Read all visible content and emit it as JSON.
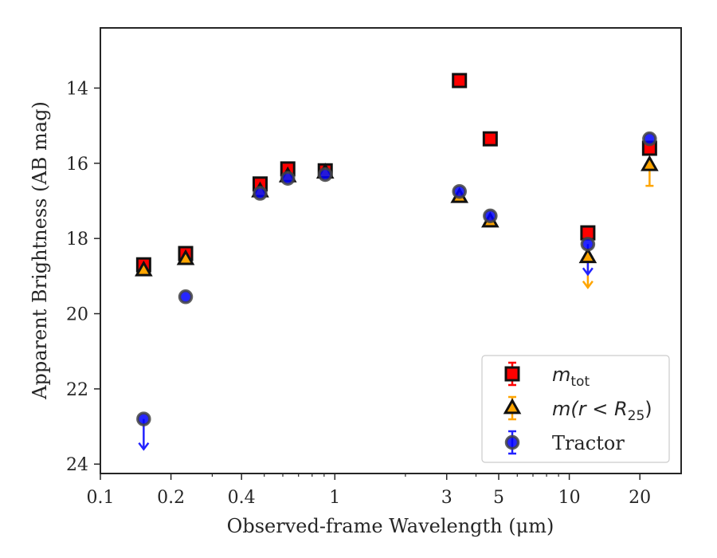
{
  "chart_data": {
    "type": "scatter",
    "xlabel": "Observed-frame Wavelength (μm)",
    "ylabel": "Apparent Brightness (AB mag)",
    "xscale": "log",
    "xlim": [
      0.1,
      30
    ],
    "ylim": [
      24.25,
      12.4
    ],
    "y_inverted": true,
    "xticks": [
      {
        "value": 0.1,
        "label": "0.1"
      },
      {
        "value": 0.2,
        "label": "0.2"
      },
      {
        "value": 0.4,
        "label": "0.4"
      },
      {
        "value": 1,
        "label": "1"
      },
      {
        "value": 3,
        "label": "3"
      },
      {
        "value": 5,
        "label": "5"
      },
      {
        "value": 10,
        "label": "10"
      },
      {
        "value": 20,
        "label": "20"
      }
    ],
    "yticks": [
      {
        "value": 14,
        "label": "14"
      },
      {
        "value": 16,
        "label": "16"
      },
      {
        "value": 18,
        "label": "18"
      },
      {
        "value": 20,
        "label": "20"
      },
      {
        "value": 22,
        "label": "22"
      },
      {
        "value": 24,
        "label": "24"
      }
    ],
    "legend_position": "bottom-right",
    "series": [
      {
        "name": "m_tot",
        "legend_label": "m",
        "legend_sub": "tot",
        "marker": "square",
        "color": "#ff0000",
        "err_color": "#ff0000",
        "points": [
          {
            "x": 0.153,
            "y": 18.7,
            "upper": false
          },
          {
            "x": 0.231,
            "y": 18.4,
            "upper": false
          },
          {
            "x": 0.48,
            "y": 16.55,
            "upper": false
          },
          {
            "x": 0.63,
            "y": 16.15,
            "upper": false
          },
          {
            "x": 0.91,
            "y": 16.2,
            "upper": false
          },
          {
            "x": 3.4,
            "y": 13.8,
            "upper": false
          },
          {
            "x": 4.6,
            "y": 15.35,
            "upper": false
          },
          {
            "x": 12.0,
            "y": 17.85,
            "upper": false
          },
          {
            "x": 22.0,
            "y": 15.6,
            "upper": false
          }
        ]
      },
      {
        "name": "m(r < R25)",
        "legend_label": "m(r < R",
        "legend_sub": "25",
        "legend_tail": ")",
        "marker": "triangle",
        "color": "#ffa500",
        "err_color": "#ffa500",
        "points": [
          {
            "x": 0.153,
            "y": 18.85,
            "upper": false
          },
          {
            "x": 0.231,
            "y": 18.55,
            "upper": false
          },
          {
            "x": 0.48,
            "y": 16.75,
            "upper": false
          },
          {
            "x": 0.63,
            "y": 16.35,
            "upper": false
          },
          {
            "x": 0.91,
            "y": 16.25,
            "upper": false
          },
          {
            "x": 3.4,
            "y": 16.9,
            "upper": false
          },
          {
            "x": 4.6,
            "y": 17.55,
            "upper": false
          },
          {
            "x": 12.0,
            "y": 18.5,
            "upper": true
          },
          {
            "x": 22.0,
            "y": 16.05,
            "upper": false,
            "err_lo": 16.0,
            "err_hi": 16.6
          }
        ]
      },
      {
        "name": "Tractor",
        "legend_label": "Tractor",
        "marker": "circle",
        "color": "#0000ff",
        "err_color": "#2222ff",
        "points": [
          {
            "x": 0.153,
            "y": 22.8,
            "upper": true
          },
          {
            "x": 0.231,
            "y": 19.55,
            "upper": false
          },
          {
            "x": 0.48,
            "y": 16.8,
            "upper": false
          },
          {
            "x": 0.63,
            "y": 16.4,
            "upper": false
          },
          {
            "x": 0.91,
            "y": 16.3,
            "upper": false
          },
          {
            "x": 3.4,
            "y": 16.75,
            "upper": false
          },
          {
            "x": 4.6,
            "y": 17.4,
            "upper": false
          },
          {
            "x": 12.0,
            "y": 18.15,
            "upper": true
          },
          {
            "x": 22.0,
            "y": 15.35,
            "upper": false
          }
        ]
      }
    ]
  }
}
